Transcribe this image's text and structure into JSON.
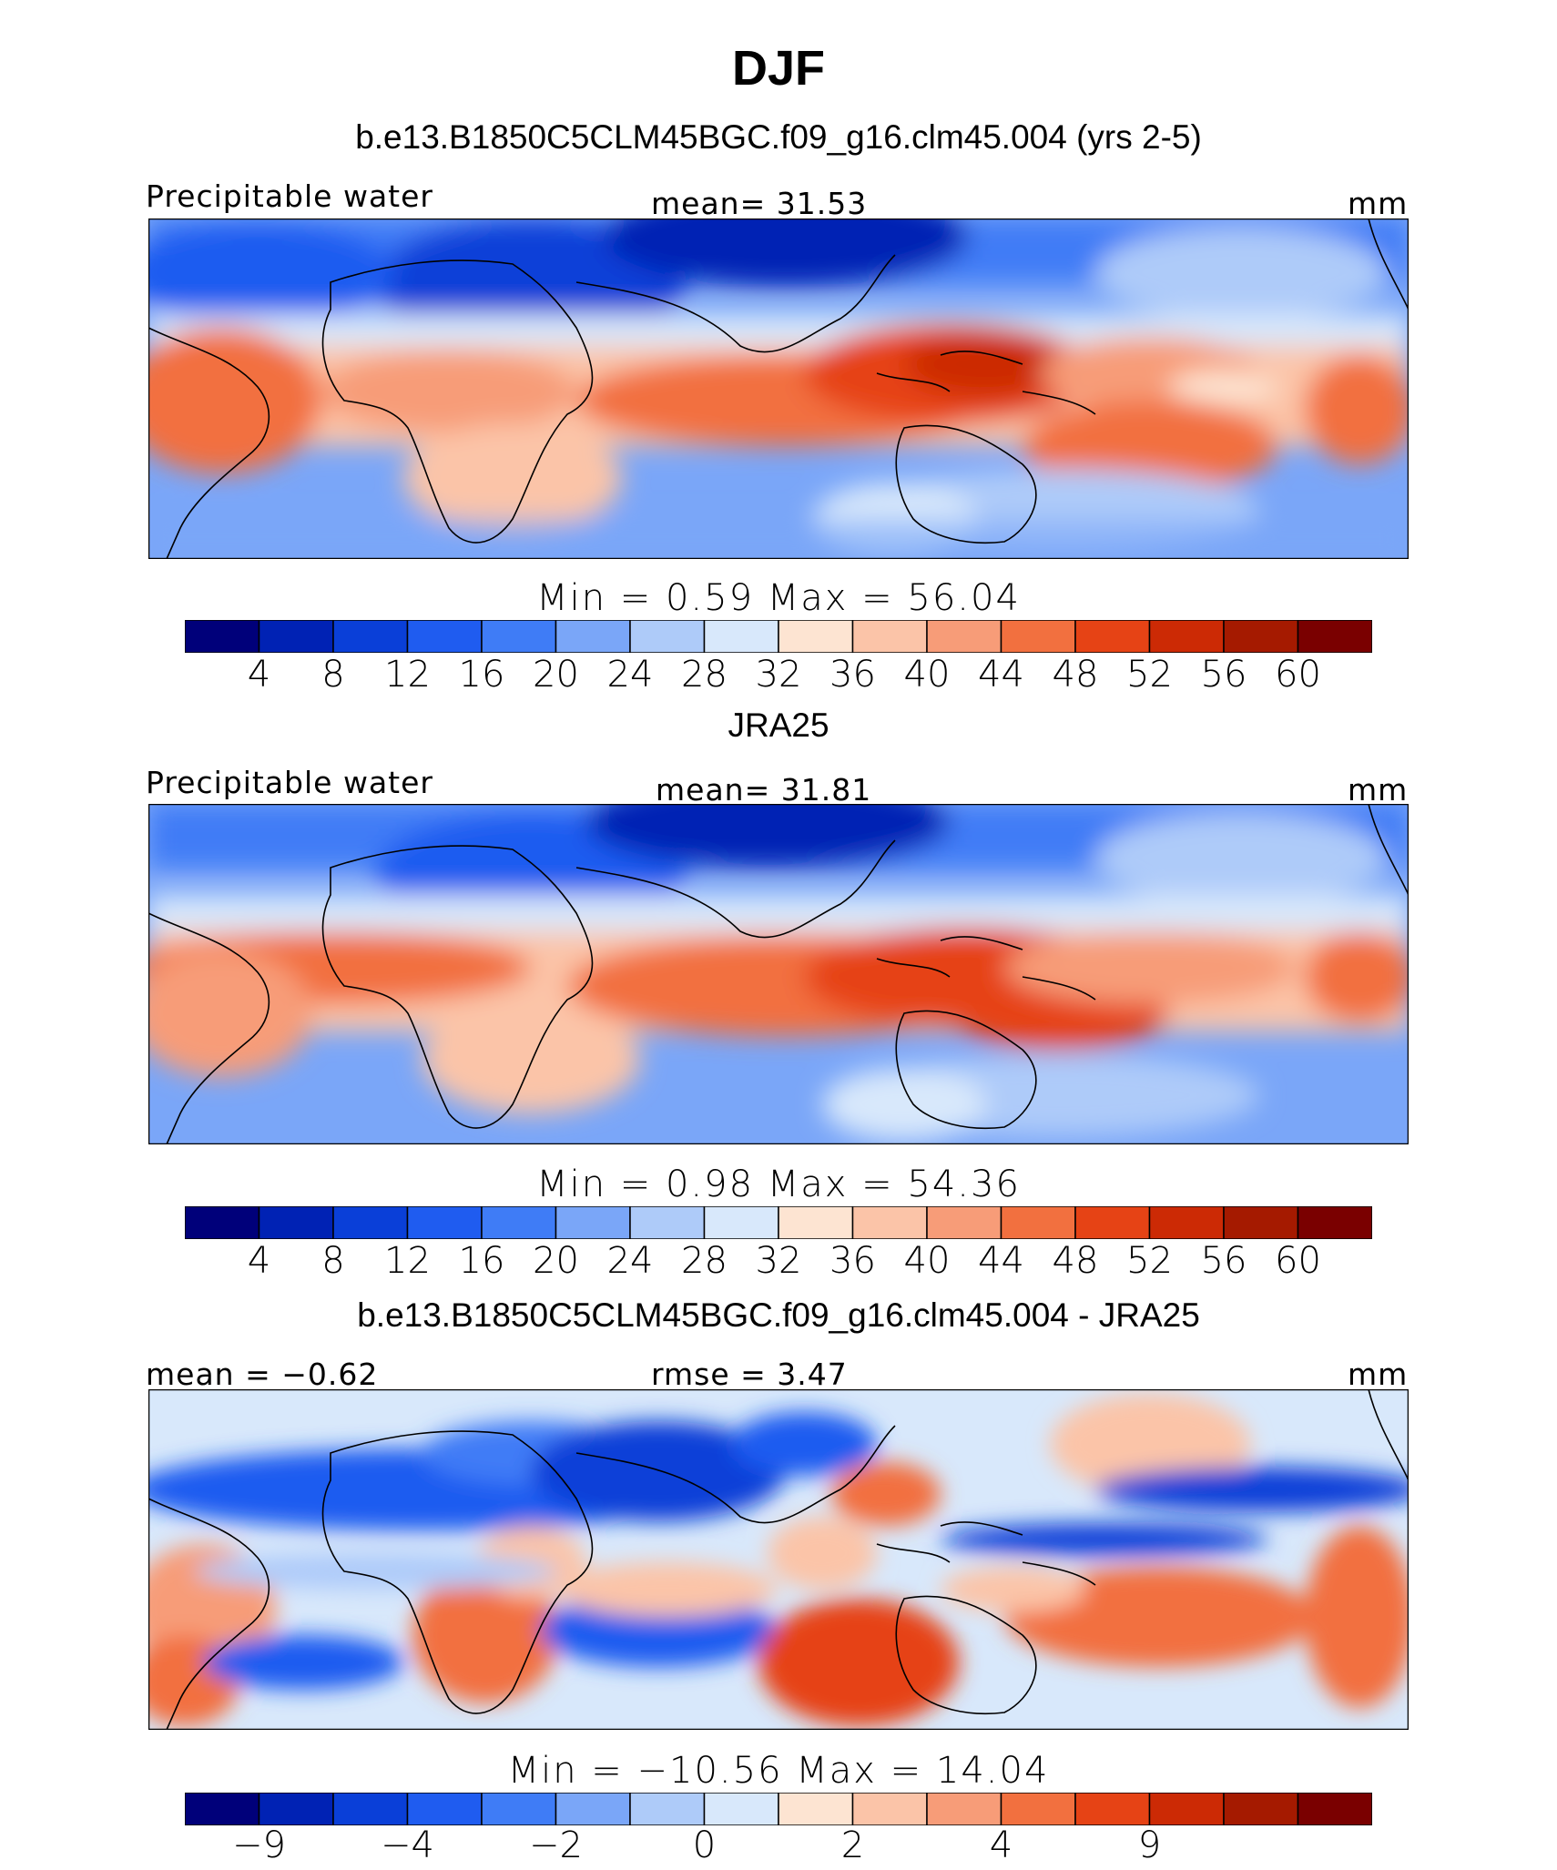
{
  "title": "DJF",
  "panels": [
    {
      "title": "b.e13.B1850C5CLM45BGC.f09_g16.clm45.004 (yrs 2-5)",
      "left_label": "Precipitable water",
      "center_label": "mean=   31.53",
      "right_label": "mm",
      "minmax": "Min  =    0.59  Max  =   56.04",
      "colorbar": {
        "colors": [
          "#00007a",
          "#0022b4",
          "#0a3fd8",
          "#1f5cf0",
          "#3f7cf6",
          "#7aa6f8",
          "#aecbf9",
          "#d8e8fb",
          "#fde4d2",
          "#fbc4a8",
          "#f79c78",
          "#f2703f",
          "#e64315",
          "#cc2a05",
          "#a51a00",
          "#7a0000"
        ],
        "ticks": [
          "4",
          "8",
          "12",
          "16",
          "20",
          "24",
          "28",
          "32",
          "36",
          "40",
          "44",
          "48",
          "52",
          "56",
          "60"
        ]
      }
    },
    {
      "title": "JRA25",
      "left_label": "Precipitable water",
      "center_label": "mean=   31.81",
      "right_label": "mm",
      "minmax": "Min  =    0.98  Max  =   54.36",
      "colorbar": {
        "colors": [
          "#00007a",
          "#0022b4",
          "#0a3fd8",
          "#1f5cf0",
          "#3f7cf6",
          "#7aa6f8",
          "#aecbf9",
          "#d8e8fb",
          "#fde4d2",
          "#fbc4a8",
          "#f79c78",
          "#f2703f",
          "#e64315",
          "#cc2a05",
          "#a51a00",
          "#7a0000"
        ],
        "ticks": [
          "4",
          "8",
          "12",
          "16",
          "20",
          "24",
          "28",
          "32",
          "36",
          "40",
          "44",
          "48",
          "52",
          "56",
          "60"
        ]
      }
    },
    {
      "title": "b.e13.B1850C5CLM45BGC.f09_g16.clm45.004 - JRA25",
      "left_label": "mean  =   −0.62",
      "center_label": "rmse  =     3.47",
      "right_label": "mm",
      "minmax": "Min  = −10.56  Max  =   14.04",
      "colorbar": {
        "colors": [
          "#00007a",
          "#0022b4",
          "#0a3fd8",
          "#1f5cf0",
          "#3f7cf6",
          "#7aa6f8",
          "#aecbf9",
          "#d8e8fb",
          "#fde4d2",
          "#fbc4a8",
          "#f79c78",
          "#f2703f",
          "#e64315",
          "#cc2a05",
          "#a51a00",
          "#7a0000"
        ],
        "ticks": [
          "−9",
          "",
          "−4",
          "",
          "−2",
          "",
          "0",
          "",
          "2",
          "",
          "4",
          "",
          "9",
          "",
          ""
        ]
      }
    }
  ]
}
